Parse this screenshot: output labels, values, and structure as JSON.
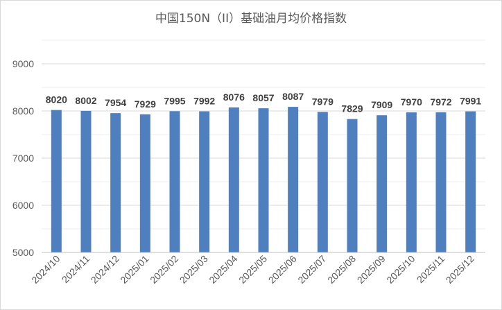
{
  "chart_data": {
    "type": "bar",
    "title": "中国150N（II）基础油月均价格指数",
    "categories": [
      "2024/10",
      "2024/11",
      "2024/12",
      "2025/01",
      "2025/02",
      "2025/03",
      "2025/04",
      "2025/05",
      "2025/06",
      "2025/07",
      "2025/08",
      "2025/09",
      "2025/10",
      "2025/11",
      "2025/12"
    ],
    "values": [
      8020,
      8002,
      7954,
      7929,
      7995,
      7992,
      8076,
      8057,
      8087,
      7979,
      7829,
      7909,
      7970,
      7972,
      7991
    ],
    "ylim": [
      5000,
      9000
    ],
    "yticks": [
      "5000",
      "6000",
      "7000",
      "8000",
      "9000"
    ],
    "xlabel": "",
    "ylabel": "",
    "grid": true,
    "bar_color": "#4f7fbf",
    "grid_color": "#d9d9d9",
    "minor_grid_color": "#ececec"
  }
}
